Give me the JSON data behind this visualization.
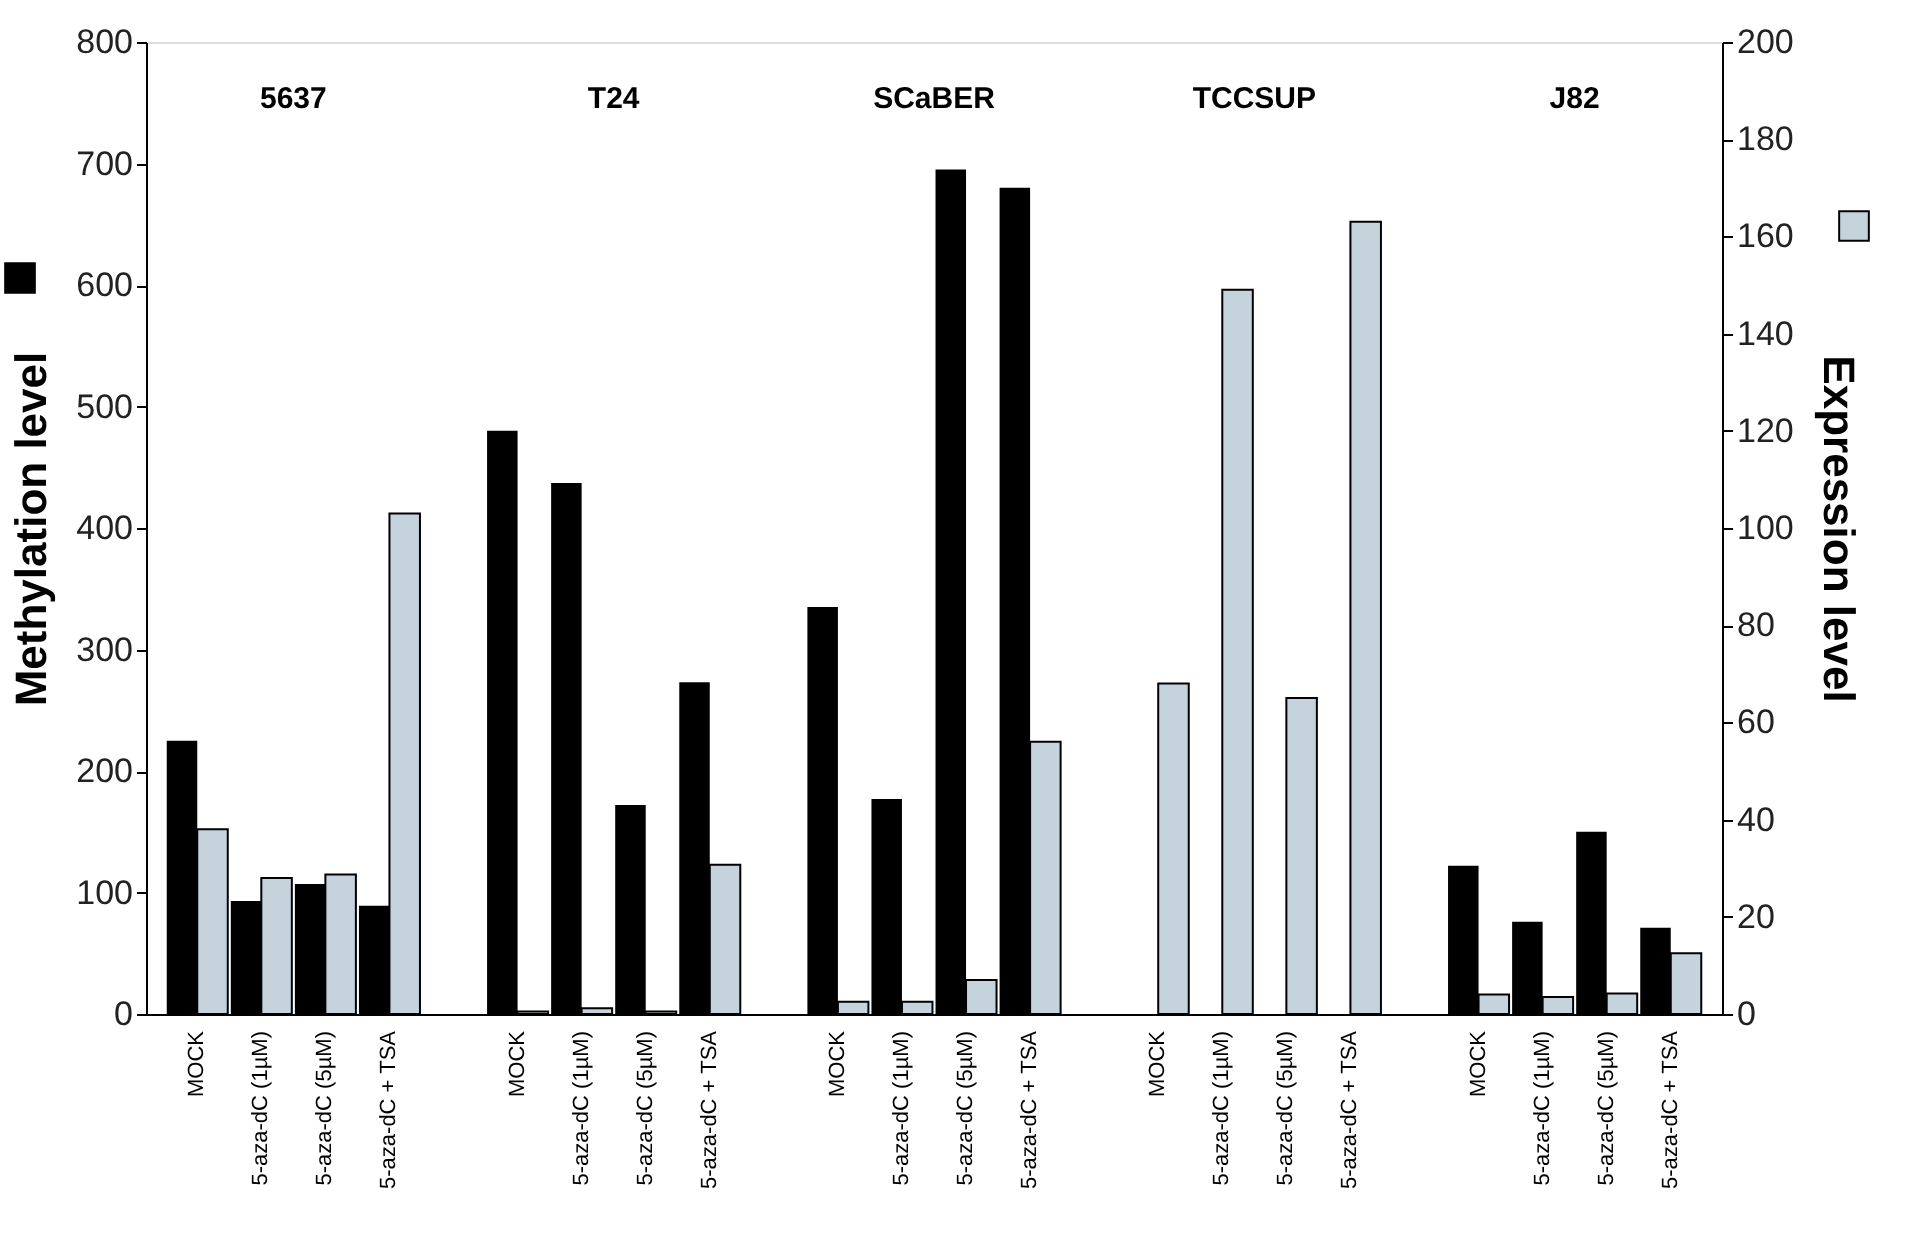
{
  "chart_data": {
    "type": "bar",
    "categories": [
      "MOCK",
      "5-aza-dC (1µM)",
      "5-aza-dC (5µM)",
      "5-aza-dC + TSA",
      null,
      "MOCK",
      "5-aza-dC (1µM)",
      "5-aza-dC (5µM)",
      "5-aza-dC + TSA",
      null,
      "MOCK",
      "5-aza-dC (1µM)",
      "5-aza-dC (5µM)",
      "5-aza-dC + TSA",
      null,
      "MOCK",
      "5-aza-dC (1µM)",
      "5-aza-dC (5µM)",
      "5-aza-dC + TSA",
      null,
      "MOCK",
      "5-aza-dC (1µM)",
      "5-aza-dC (5µM)",
      "5-aza-dC + TSA"
    ],
    "series": [
      {
        "color": "#000000",
        "values": [
          225,
          93,
          107,
          89,
          null,
          480,
          437,
          172,
          273,
          null,
          335,
          177,
          695,
          680,
          null,
          null,
          null,
          null,
          null,
          null,
          122,
          76,
          150,
          71
        ]
      },
      {
        "color": "#c5d3dc",
        "axis": "y2",
        "values": [
          38,
          28,
          28.7,
          103,
          null,
          0.5,
          1.2,
          0.5,
          30.7,
          null,
          2.5,
          2.5,
          7,
          56,
          null,
          68,
          149,
          65,
          163,
          null,
          4,
          3.5,
          4.2,
          12.5
        ]
      }
    ],
    "ylabel": "Methylation level",
    "y2label": "Expression level",
    "ylim": [
      0,
      800
    ],
    "yticks": [
      0,
      100,
      200,
      300,
      400,
      500,
      600,
      700,
      800
    ],
    "y2lim": [
      0,
      200
    ],
    "y2ticks": [
      0,
      20,
      40,
      60,
      80,
      100,
      120,
      140,
      160,
      180,
      200
    ],
    "annotations": [
      "5637",
      "T24",
      "SCaBER",
      "TCCSUP",
      "J82"
    ],
    "grid": false
  }
}
